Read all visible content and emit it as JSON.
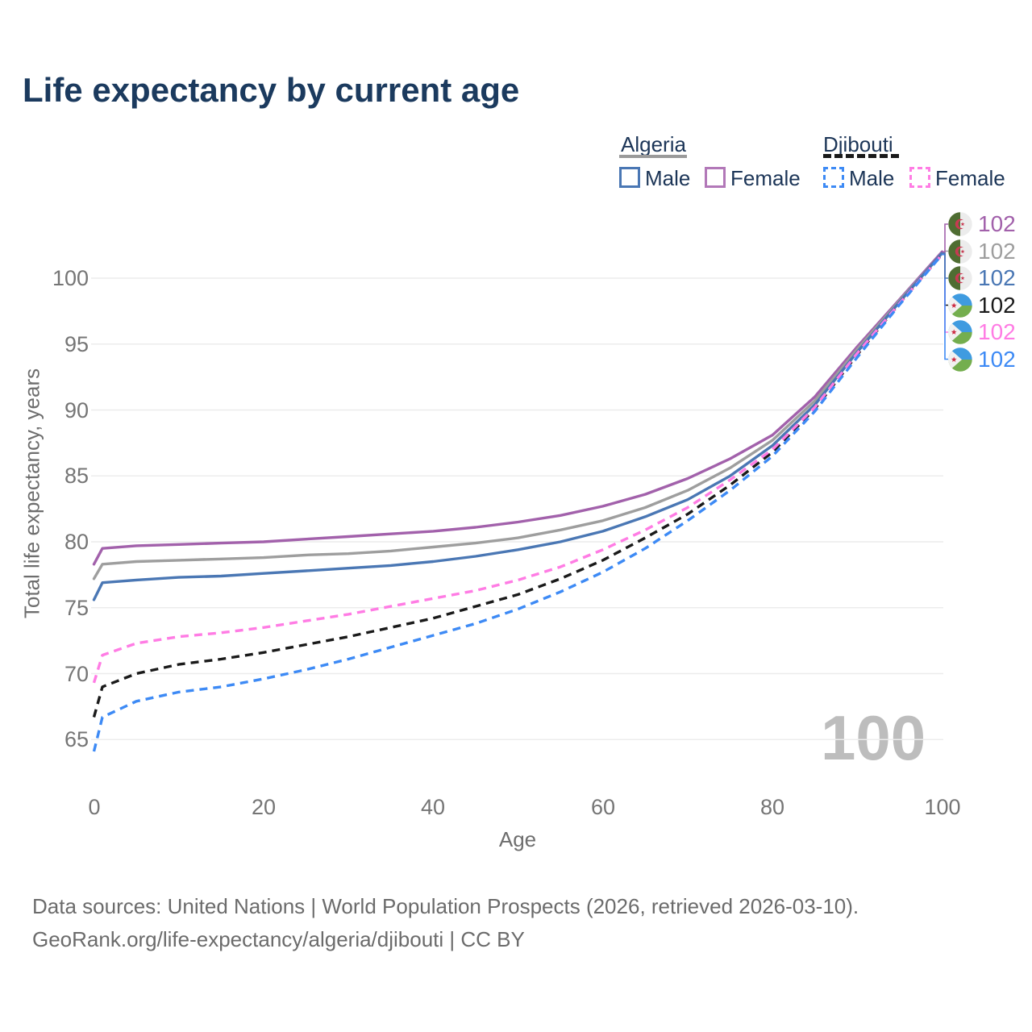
{
  "title": "Life expectancy by current age",
  "watermark": "100",
  "legend": {
    "groups": [
      {
        "country": "Algeria",
        "line_style": "solid",
        "line_color": "#9a9a9a",
        "items": [
          {
            "label": "Male",
            "color": "#4a77b4",
            "style": "solid"
          },
          {
            "label": "Female",
            "color": "#b278b8",
            "style": "solid"
          }
        ]
      },
      {
        "country": "Djibouti",
        "line_style": "dashed",
        "line_color": "#1a1a1a",
        "items": [
          {
            "label": "Male",
            "color": "#3d8af5",
            "style": "dashed"
          },
          {
            "label": "Female",
            "color": "#ff7ce4",
            "style": "dashed"
          }
        ]
      }
    ]
  },
  "chart_data": {
    "type": "line",
    "title": "Life expectancy by current age",
    "xlabel": "Age",
    "ylabel": "Total life expectancy, years",
    "xlim": [
      0,
      100
    ],
    "ylim": [
      63,
      103
    ],
    "xticks": [
      0,
      20,
      40,
      60,
      80,
      100
    ],
    "yticks": [
      65,
      70,
      75,
      80,
      85,
      90,
      95,
      100
    ],
    "grid": true,
    "legend_position": "top-right",
    "x": [
      0,
      1,
      5,
      10,
      15,
      20,
      25,
      30,
      35,
      40,
      45,
      50,
      55,
      60,
      65,
      70,
      75,
      80,
      85,
      90,
      95,
      100
    ],
    "series": [
      {
        "name": "Algeria Female",
        "country": "Algeria",
        "sex": "Female",
        "color": "#a261ab",
        "dash": false,
        "end_label": "102",
        "values": [
          78.3,
          79.5,
          79.7,
          79.8,
          79.9,
          80.0,
          80.2,
          80.4,
          80.6,
          80.8,
          81.1,
          81.5,
          82.0,
          82.7,
          83.6,
          84.8,
          86.3,
          88.1,
          91.0,
          94.8,
          98.4,
          102.0
        ]
      },
      {
        "name": "Algeria",
        "country": "Algeria",
        "sex": "All",
        "color": "#9e9e9e",
        "dash": false,
        "end_label": "102",
        "values": [
          77.2,
          78.3,
          78.5,
          78.6,
          78.7,
          78.8,
          79.0,
          79.1,
          79.3,
          79.6,
          79.9,
          80.3,
          80.9,
          81.6,
          82.6,
          83.9,
          85.6,
          87.7,
          90.7,
          94.6,
          98.3,
          101.9
        ]
      },
      {
        "name": "Algeria Male",
        "country": "Algeria",
        "sex": "Male",
        "color": "#4a77b4",
        "dash": false,
        "end_label": "102",
        "values": [
          75.6,
          76.9,
          77.1,
          77.3,
          77.4,
          77.6,
          77.8,
          78.0,
          78.2,
          78.5,
          78.9,
          79.4,
          80.0,
          80.8,
          81.9,
          83.2,
          85.0,
          87.3,
          90.4,
          94.4,
          98.2,
          101.9
        ]
      },
      {
        "name": "Djibouti",
        "country": "Djibouti",
        "sex": "All",
        "color": "#1a1a1a",
        "dash": true,
        "end_label": "102",
        "values": [
          66.7,
          69.0,
          70.0,
          70.7,
          71.1,
          71.6,
          72.2,
          72.8,
          73.5,
          74.2,
          75.1,
          76.0,
          77.2,
          78.6,
          80.3,
          82.1,
          84.3,
          86.8,
          90.1,
          94.2,
          98.1,
          101.8
        ]
      },
      {
        "name": "Djibouti Female",
        "country": "Djibouti",
        "sex": "Female",
        "color": "#ff7ce4",
        "dash": true,
        "end_label": "102",
        "values": [
          69.3,
          71.4,
          72.3,
          72.8,
          73.1,
          73.5,
          74.0,
          74.5,
          75.1,
          75.7,
          76.3,
          77.1,
          78.1,
          79.4,
          80.9,
          82.6,
          84.7,
          87.0,
          90.2,
          94.3,
          98.1,
          101.8
        ]
      },
      {
        "name": "Djibouti Male",
        "country": "Djibouti",
        "sex": "Male",
        "color": "#3d8af5",
        "dash": true,
        "end_label": "102",
        "values": [
          64.1,
          66.7,
          67.9,
          68.6,
          69.0,
          69.6,
          70.3,
          71.1,
          72.0,
          72.9,
          73.8,
          74.9,
          76.2,
          77.7,
          79.5,
          81.6,
          83.9,
          86.5,
          89.9,
          94.0,
          98.0,
          101.8
        ]
      }
    ]
  },
  "footer": {
    "line1": "Data sources: United Nations | World Population Prospects (2026, retrieved 2026-03-10).",
    "line2": "GeoRank.org/life-expectancy/algeria/djibouti | CC BY"
  }
}
